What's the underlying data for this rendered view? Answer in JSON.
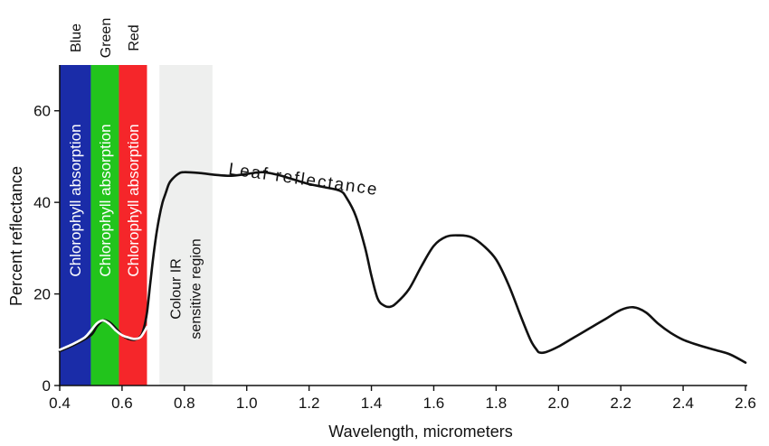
{
  "chart_data": {
    "type": "line",
    "xlabel": "Wavelength, micrometers",
    "ylabel": "Percent reflectance",
    "xlim": [
      0.4,
      2.6
    ],
    "ylim": [
      0,
      70
    ],
    "x_ticks": [
      0.4,
      0.6,
      0.8,
      1.0,
      1.2,
      1.4,
      1.6,
      1.8,
      2.0,
      2.2,
      2.4,
      2.6
    ],
    "x_tick_labels": [
      "0.4",
      "0.6",
      "0.8",
      "1.0",
      "1.2",
      "1.4",
      "1.6",
      "1.8",
      "2.0",
      "2.2",
      "2.4",
      "2.6"
    ],
    "y_ticks": [
      0,
      20,
      40,
      60
    ],
    "y_tick_labels": [
      "0",
      "20",
      "40",
      "60"
    ],
    "grid": false,
    "bands": [
      {
        "top_label": "Blue",
        "inner_label": "Chlorophyll absorption",
        "x0": 0.4,
        "x1": 0.5,
        "color": "#1a2ca8"
      },
      {
        "top_label": "Green",
        "inner_label": "Chlorophyll absorption",
        "x0": 0.5,
        "x1": 0.59,
        "color": "#22c41c"
      },
      {
        "top_label": "Red",
        "inner_label": "Chlorophyll absorption",
        "x0": 0.59,
        "x1": 0.68,
        "color": "#f5262a"
      }
    ],
    "region": {
      "label_lines": [
        "Colour IR",
        "sensitive region"
      ],
      "x0": 0.72,
      "x1": 0.89,
      "color": "#eeefee"
    },
    "curve_label": "Leaf reflectance",
    "series": [
      {
        "color": "#111111",
        "x": [
          0.4,
          0.45,
          0.5,
          0.52,
          0.54,
          0.56,
          0.58,
          0.6,
          0.62,
          0.64,
          0.66,
          0.67,
          0.68,
          0.69,
          0.7,
          0.71,
          0.72,
          0.73,
          0.74,
          0.75,
          0.76,
          0.78,
          0.8,
          0.85,
          0.9,
          0.95,
          1.0,
          1.05,
          1.1,
          1.15,
          1.2,
          1.25,
          1.3,
          1.32,
          1.35,
          1.38,
          1.4,
          1.42,
          1.44,
          1.46,
          1.48,
          1.52,
          1.56,
          1.6,
          1.64,
          1.68,
          1.72,
          1.76,
          1.8,
          1.84,
          1.88,
          1.91,
          1.93,
          1.94,
          1.96,
          2.0,
          2.05,
          2.1,
          2.15,
          2.2,
          2.24,
          2.28,
          2.32,
          2.36,
          2.4,
          2.45,
          2.5,
          2.55,
          2.6
        ],
        "y": [
          7.5,
          9,
          11,
          13,
          14.2,
          13.8,
          12.5,
          11,
          10.2,
          10,
          10.8,
          12.5,
          16,
          22,
          28,
          33,
          37,
          40,
          42,
          44,
          45,
          46.2,
          46.6,
          46.4,
          46,
          45.8,
          46.2,
          46.6,
          46,
          45,
          44,
          43.3,
          42.5,
          41,
          37,
          30,
          24,
          19,
          17.5,
          17.2,
          18,
          21,
          26,
          30.5,
          32.5,
          32.8,
          32.4,
          30.5,
          27.5,
          22,
          15,
          10,
          7.8,
          7.2,
          7.3,
          8.5,
          10.5,
          12.5,
          14.5,
          16.5,
          17.1,
          16,
          13.5,
          11.5,
          10,
          8.8,
          7.8,
          6.8,
          5
        ]
      },
      {
        "color": "#ffffff",
        "x": [
          0.4,
          0.44,
          0.48,
          0.5,
          0.52,
          0.54,
          0.56,
          0.58,
          0.6,
          0.62,
          0.64,
          0.66,
          0.68
        ],
        "y": [
          7.8,
          9,
          10.5,
          12,
          13.6,
          14.2,
          13.4,
          12,
          11,
          10.5,
          10.2,
          10.6,
          12.8
        ]
      }
    ]
  }
}
